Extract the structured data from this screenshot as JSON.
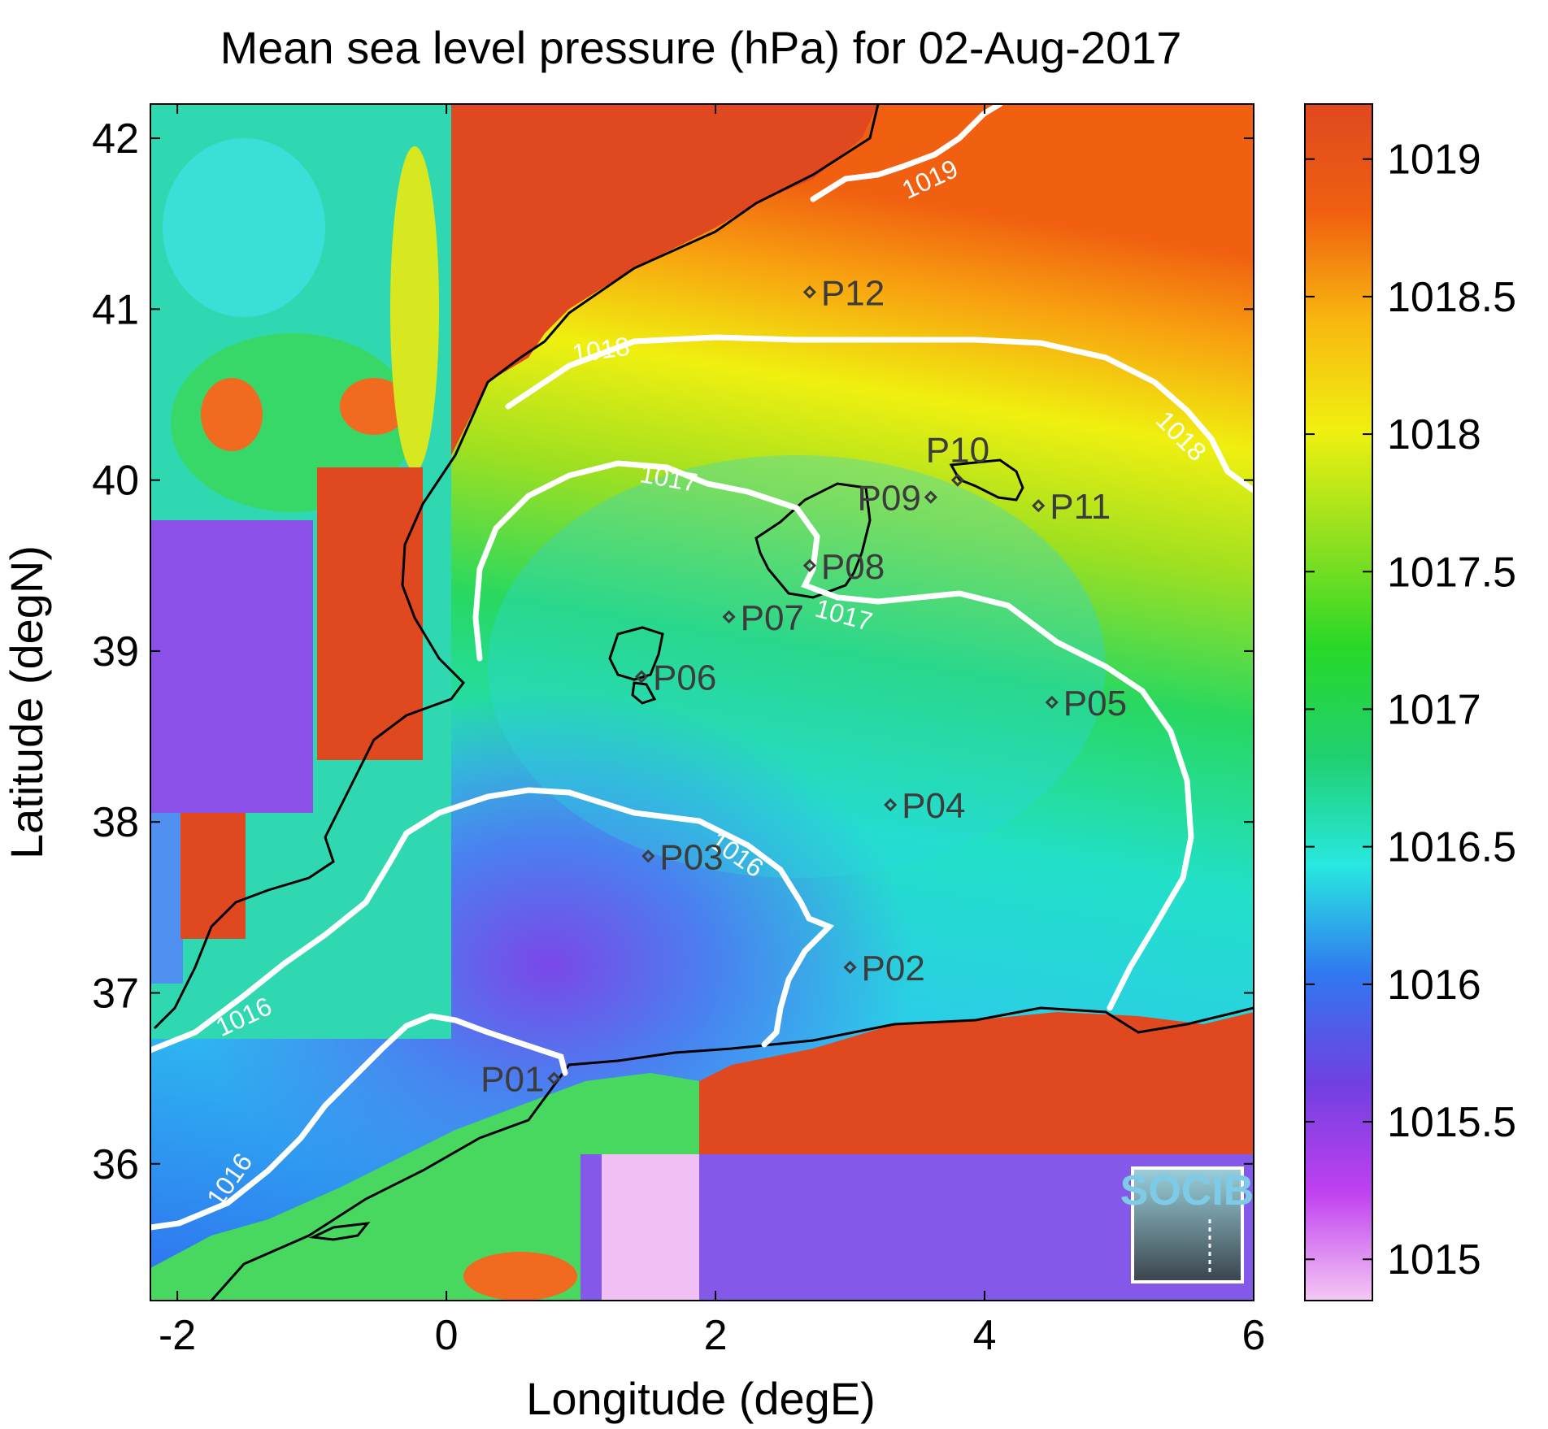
{
  "title": "Mean sea level pressure (hPa) for 02-Aug-2017",
  "xlabel": "Longitude (degE)",
  "ylabel": "Latitude (degN)",
  "map": {
    "lon_range": [
      -2.2,
      6.0
    ],
    "lat_range": [
      35.2,
      42.2
    ],
    "x_ticks": [
      {
        "value": -2,
        "label": "-2"
      },
      {
        "value": 0,
        "label": "0"
      },
      {
        "value": 2,
        "label": "2"
      },
      {
        "value": 4,
        "label": "4"
      },
      {
        "value": 6,
        "label": "6"
      }
    ],
    "y_ticks": [
      {
        "value": 36,
        "label": "36"
      },
      {
        "value": 37,
        "label": "37"
      },
      {
        "value": 38,
        "label": "38"
      },
      {
        "value": 39,
        "label": "39"
      },
      {
        "value": 40,
        "label": "40"
      },
      {
        "value": 41,
        "label": "41"
      },
      {
        "value": 42,
        "label": "42"
      }
    ]
  },
  "colorbar": {
    "range": [
      1014.85,
      1019.2
    ],
    "ticks": [
      {
        "value": 1015,
        "label": "1015"
      },
      {
        "value": 1015.5,
        "label": "1015.5"
      },
      {
        "value": 1016,
        "label": "1016"
      },
      {
        "value": 1016.5,
        "label": "1016.5"
      },
      {
        "value": 1017,
        "label": "1017"
      },
      {
        "value": 1017.5,
        "label": "1017.5"
      },
      {
        "value": 1018,
        "label": "1018"
      },
      {
        "value": 1018.5,
        "label": "1018.5"
      },
      {
        "value": 1019,
        "label": "1019"
      }
    ],
    "colors": [
      "#f4c8f4",
      "#c040f0",
      "#7040e0",
      "#3078f0",
      "#28e8e0",
      "#20d070",
      "#28d828",
      "#90e020",
      "#f0f010",
      "#f8b810",
      "#f06010",
      "#e04820"
    ]
  },
  "stations": [
    {
      "name": "P01",
      "lon": 0.8,
      "lat": 36.5,
      "label_side": "left"
    },
    {
      "name": "P02",
      "lon": 3.0,
      "lat": 37.15,
      "label_side": "right"
    },
    {
      "name": "P03",
      "lon": 1.5,
      "lat": 37.8,
      "label_side": "right"
    },
    {
      "name": "P04",
      "lon": 3.3,
      "lat": 38.1,
      "label_side": "right"
    },
    {
      "name": "P05",
      "lon": 4.5,
      "lat": 38.7,
      "label_side": "right"
    },
    {
      "name": "P06",
      "lon": 1.45,
      "lat": 38.85,
      "label_side": "right"
    },
    {
      "name": "P07",
      "lon": 2.1,
      "lat": 39.2,
      "label_side": "right"
    },
    {
      "name": "P08",
      "lon": 2.7,
      "lat": 39.5,
      "label_side": "right"
    },
    {
      "name": "P09",
      "lon": 3.6,
      "lat": 39.9,
      "label_side": "left"
    },
    {
      "name": "P10",
      "lon": 3.8,
      "lat": 40.0,
      "label_side": "above"
    },
    {
      "name": "P11",
      "lon": 4.4,
      "lat": 39.85,
      "label_side": "right"
    },
    {
      "name": "P12",
      "lon": 2.7,
      "lat": 41.1,
      "label_side": "right"
    }
  ],
  "contours": [
    {
      "level": "1016",
      "label_positions": [
        {
          "lon": -1.5,
          "lat": 36.85,
          "angle": -25
        },
        {
          "lon": -1.6,
          "lat": 35.9,
          "angle": -55
        },
        {
          "lon": 2.15,
          "lat": 37.8,
          "angle": 35
        }
      ]
    },
    {
      "level": "1017",
      "label_positions": [
        {
          "lon": 1.65,
          "lat": 40.0,
          "angle": 10
        },
        {
          "lon": 2.95,
          "lat": 39.2,
          "angle": 15
        }
      ]
    },
    {
      "level": "1018",
      "label_positions": [
        {
          "lon": 1.15,
          "lat": 40.75,
          "angle": -8
        },
        {
          "lon": 5.45,
          "lat": 40.25,
          "angle": 45
        }
      ]
    },
    {
      "level": "1019",
      "label_positions": [
        {
          "lon": 3.6,
          "lat": 41.75,
          "angle": -25
        }
      ]
    }
  ],
  "logo": {
    "text": "SOCIB"
  }
}
